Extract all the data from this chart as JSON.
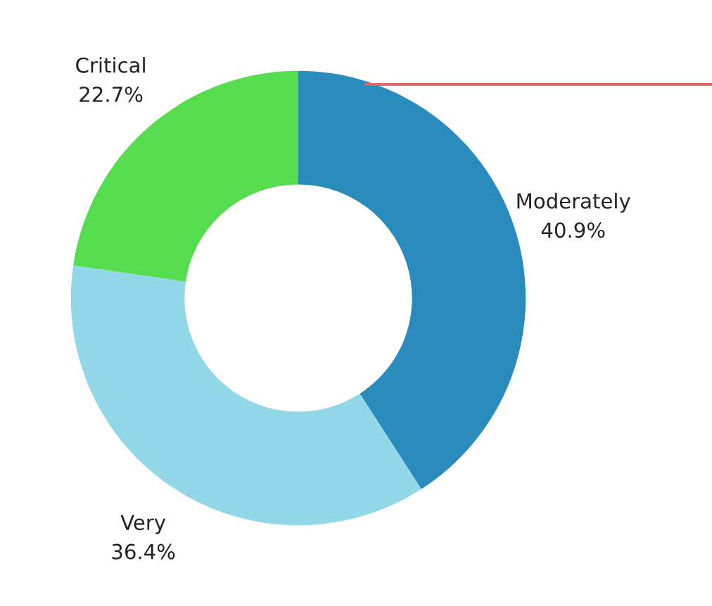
{
  "chart_data": {
    "type": "donut",
    "categories": [
      "Moderately",
      "Very",
      "Critical"
    ],
    "values": [
      40.9,
      36.4,
      22.7
    ],
    "value_labels": [
      "40.9%",
      "36.4%",
      "22.7%"
    ],
    "colors": [
      "#2a8bbd",
      "#93d8e8",
      "#55dd4f"
    ],
    "legend": false
  }
}
